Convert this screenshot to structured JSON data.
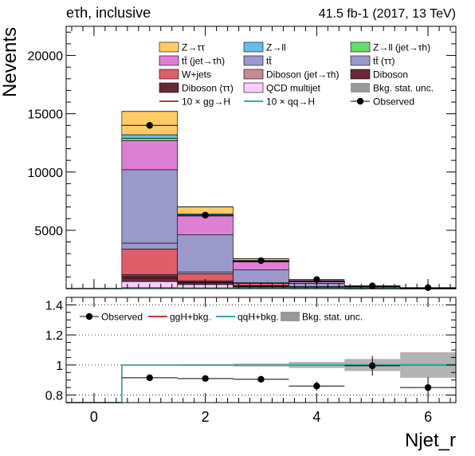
{
  "header": {
    "channel_label": "eτh, inclusive",
    "lumi_label": "41.5 fb-1 (2017, 13 TeV)"
  },
  "colors": {
    "ztt": "#ffcc66",
    "zll": "#64c0e8",
    "zll_jet": "#64de6a",
    "ttbar_jet": "#de7fd6",
    "ttbar": "#9999cc",
    "ttbar_tt": "#9999cc",
    "wjets": "#e05d6a",
    "diboson_jet": "#c88896",
    "diboson": "#6b2934",
    "diboson_tt": "#6b2934",
    "qcd": "#ffccff",
    "stat_unc": "#999999",
    "gg_h": "#cc3333",
    "qq_h": "#33aaaa"
  },
  "legend_main": [
    {
      "key": "ztt",
      "label": "Z→ττ",
      "kind": "fill"
    },
    {
      "key": "zll",
      "label": "Z→ll",
      "kind": "fill"
    },
    {
      "key": "zll_jet",
      "label": "Z→ll (jet→τh)",
      "kind": "fill"
    },
    {
      "key": "ttbar_jet",
      "label": "tt̄ (jet→τh)",
      "kind": "fill"
    },
    {
      "key": "ttbar",
      "label": "tt̄",
      "kind": "fill"
    },
    {
      "key": "ttbar_tt",
      "label": "tt̄ (ττ)",
      "kind": "fill"
    },
    {
      "key": "wjets",
      "label": "W+jets",
      "kind": "fill"
    },
    {
      "key": "diboson_jet",
      "label": "Diboson (jet→τh)",
      "kind": "fill"
    },
    {
      "key": "diboson",
      "label": "Diboson",
      "kind": "fill"
    },
    {
      "key": "diboson_tt",
      "label": "Diboson (ττ)",
      "kind": "fill"
    },
    {
      "key": "qcd",
      "label": "QCD multijet",
      "kind": "fill"
    },
    {
      "key": "stat_unc",
      "label": "Bkg. stat. unc.",
      "kind": "unc"
    },
    {
      "key": "gg_h",
      "label": "10 × gg→H",
      "kind": "line"
    },
    {
      "key": "qq_h",
      "label": "10 × qq→H",
      "kind": "line"
    },
    {
      "key": "observed",
      "label": "Observed",
      "kind": "marker"
    }
  ],
  "legend_ratio": [
    {
      "key": "observed",
      "label": "Observed",
      "kind": "marker"
    },
    {
      "key": "gg_h",
      "label": "ggH+bkg.",
      "kind": "line"
    },
    {
      "key": "qq_h",
      "label": "qqH+bkg.",
      "kind": "line"
    },
    {
      "key": "stat_unc",
      "label": "Bkg. stat. unc.",
      "kind": "unc"
    }
  ],
  "chart_data": [
    {
      "type": "bar",
      "subtype": "stacked-histogram",
      "ylabel": "Nevents",
      "ylim": [
        0,
        22500
      ],
      "yticks": [
        5000,
        10000,
        15000,
        20000
      ],
      "xlim": [
        -0.5,
        6.5
      ],
      "bin_edges": [
        -0.5,
        0.5,
        1.5,
        2.5,
        3.5,
        4.5,
        5.5,
        6.5
      ],
      "stack_order": [
        "qcd",
        "diboson",
        "diboson_tt",
        "diboson_jet",
        "wjets",
        "ttbar",
        "ttbar_tt",
        "ttbar_jet",
        "zll_jet",
        "zll",
        "ztt"
      ],
      "stack": {
        "qcd": [
          0,
          600,
          350,
          120,
          40,
          15,
          5
        ],
        "diboson": [
          0,
          300,
          150,
          60,
          20,
          8,
          3
        ],
        "diboson_tt": [
          0,
          200,
          100,
          40,
          15,
          5,
          2
        ],
        "diboson_jet": [
          0,
          100,
          80,
          30,
          10,
          4,
          2
        ],
        "wjets": [
          0,
          2200,
          600,
          200,
          70,
          25,
          8
        ],
        "ttbar": [
          0,
          500,
          150,
          50,
          15,
          5,
          2
        ],
        "ttbar_tt": [
          0,
          6300,
          3200,
          1100,
          280,
          80,
          25
        ],
        "ttbar_jet": [
          0,
          2500,
          1600,
          700,
          150,
          45,
          15
        ],
        "zll_jet": [
          0,
          200,
          80,
          35,
          12,
          5,
          2
        ],
        "zll": [
          0,
          300,
          100,
          40,
          12,
          4,
          1
        ],
        "ztt": [
          0,
          2000,
          600,
          200,
          50,
          12,
          4
        ]
      },
      "signal": {
        "gg_h": [
          0,
          80,
          50,
          25,
          10,
          4,
          1
        ],
        "qq_h": [
          0,
          40,
          60,
          60,
          40,
          25,
          12
        ]
      },
      "observed": {
        "x": [
          1,
          2,
          3,
          4,
          5,
          6
        ],
        "y": [
          14000,
          6300,
          2400,
          770,
          230,
          80
        ]
      }
    },
    {
      "type": "line",
      "subtype": "ratio",
      "xlabel": "Njet_r",
      "xticks": [
        0,
        2,
        4,
        6
      ],
      "ylim": [
        0.75,
        1.45
      ],
      "yticks": [
        0.8,
        1.0,
        1.2,
        1.4
      ],
      "ytick_labels": [
        "0.8",
        "1",
        "1.2",
        "1.4"
      ],
      "bin_edges": [
        -0.5,
        0.5,
        1.5,
        2.5,
        3.5,
        4.5,
        5.5,
        6.5
      ],
      "gg_h_ratio": [
        0.75,
        1.0,
        1.0,
        1.0,
        1.0,
        1.0,
        1.0
      ],
      "qq_h_ratio": [
        0.75,
        1.0,
        1.0,
        1.0,
        1.002,
        1.003,
        1.003
      ],
      "stat_unc_halfwidth": [
        0,
        0.004,
        0.006,
        0.01,
        0.02,
        0.04,
        0.085
      ],
      "observed": {
        "x": [
          1,
          2,
          3,
          4,
          5,
          6
        ],
        "y": [
          0.915,
          0.91,
          0.905,
          0.86,
          0.995,
          0.85
        ],
        "err": [
          0.01,
          0.015,
          0.02,
          0.03,
          0.065,
          0.07
        ]
      }
    }
  ]
}
